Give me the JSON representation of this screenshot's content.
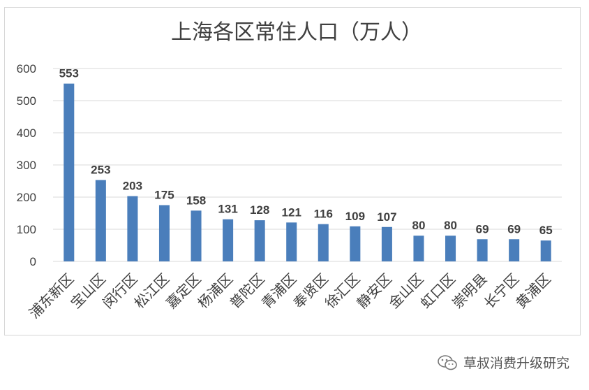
{
  "chart_data": {
    "type": "bar",
    "title": "上海各区常住人口（万人）",
    "categories": [
      "浦东新区",
      "宝山区",
      "闵行区",
      "松江区",
      "嘉定区",
      "杨浦区",
      "普陀区",
      "青浦区",
      "奉贤区",
      "徐汇区",
      "静安区",
      "金山区",
      "虹口区",
      "崇明县",
      "长宁区",
      "黄浦区"
    ],
    "values": [
      553,
      253,
      203,
      175,
      158,
      131,
      128,
      121,
      116,
      109,
      107,
      80,
      80,
      69,
      69,
      65
    ],
    "ylim": [
      0,
      600
    ],
    "yticks": [
      0,
      100,
      200,
      300,
      400,
      500,
      600
    ],
    "grid": true,
    "bar_color": "#4a7ebb"
  },
  "watermark": {
    "text": "草叔消费升级研究",
    "icon": "wechat-icon"
  }
}
